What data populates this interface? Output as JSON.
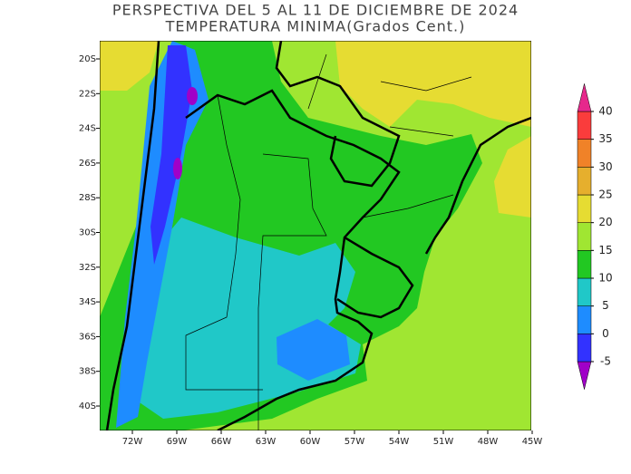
{
  "title": "PERSPECTIVA DEL 5 AL 11 DE DICIEMBRE DE 2024",
  "subtitle": "TEMPERATURA MINIMA(Grados Cent.)",
  "latitude_labels": [
    "20S",
    "22S",
    "24S",
    "26S",
    "28S",
    "30S",
    "32S",
    "34S",
    "36S",
    "38S",
    "40S"
  ],
  "longitude_labels": [
    "72W",
    "69W",
    "66W",
    "63W",
    "60W",
    "57W",
    "54W",
    "51W",
    "48W",
    "45W"
  ],
  "colorbar": {
    "ticks": [
      -5,
      0,
      5,
      10,
      15,
      20,
      25,
      30,
      35,
      40
    ],
    "colors": [
      "#a000c8",
      "#3232ff",
      "#1e8cff",
      "#20c8c8",
      "#22c822",
      "#a0e632",
      "#e6dc32",
      "#e6af2d",
      "#f08228",
      "#fa3c3c",
      "#e6288c"
    ]
  }
}
